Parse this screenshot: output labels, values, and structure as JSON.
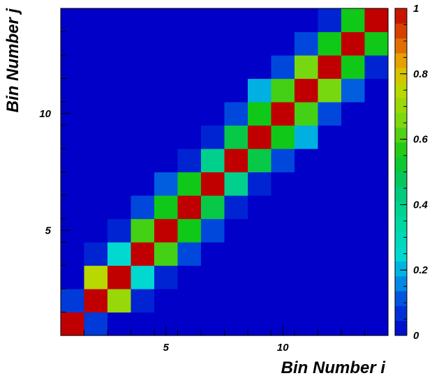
{
  "chart_data": {
    "type": "heatmap",
    "title": "",
    "xlabel": "Bin Number i",
    "ylabel": "Bin Number j",
    "x_bins": 14,
    "y_bins": 14,
    "x_major_ticks": [
      5,
      10
    ],
    "y_major_ticks": [
      5,
      10
    ],
    "color_scale": {
      "min": 0,
      "max": 1,
      "ticks": [
        0,
        0.2,
        0.4,
        0.6,
        0.8,
        1
      ],
      "tick_labels": [
        "0",
        "0.2",
        "0.4",
        "0.6",
        "0.8",
        "1"
      ],
      "stops": [
        [
          0.0,
          "#0000c8"
        ],
        [
          0.1,
          "#0048dc"
        ],
        [
          0.18,
          "#00a0e8"
        ],
        [
          0.25,
          "#00d8d0"
        ],
        [
          0.35,
          "#00d8a0"
        ],
        [
          0.45,
          "#00c878"
        ],
        [
          0.55,
          "#10c818"
        ],
        [
          0.65,
          "#78d810"
        ],
        [
          0.75,
          "#b8d800"
        ],
        [
          0.82,
          "#e8b800"
        ],
        [
          0.9,
          "#e06000"
        ],
        [
          1.0,
          "#c00000"
        ]
      ]
    },
    "grid": false,
    "legend": "right colorbar",
    "z": [
      [
        1.0,
        0.08,
        0,
        0,
        0,
        0,
        0,
        0,
        0,
        0,
        0,
        0,
        0,
        0
      ],
      [
        0.08,
        1.0,
        0.75,
        0.05,
        0,
        0,
        0,
        0,
        0,
        0,
        0,
        0,
        0,
        0
      ],
      [
        0,
        0.7,
        1.0,
        0.25,
        0.05,
        0,
        0,
        0,
        0,
        0,
        0,
        0,
        0,
        0
      ],
      [
        0,
        0.05,
        0.25,
        1.0,
        0.6,
        0.1,
        0,
        0,
        0,
        0,
        0,
        0,
        0,
        0
      ],
      [
        0,
        0,
        0.05,
        0.6,
        1.0,
        0.55,
        0.12,
        0,
        0,
        0,
        0,
        0,
        0,
        0
      ],
      [
        0,
        0,
        0,
        0.1,
        0.55,
        1.0,
        0.55,
        0.05,
        0,
        0,
        0,
        0,
        0,
        0
      ],
      [
        0,
        0,
        0,
        0,
        0.1,
        0.5,
        1.0,
        0.4,
        0.05,
        0,
        0,
        0,
        0,
        0
      ],
      [
        0,
        0,
        0,
        0,
        0,
        0.05,
        0.4,
        1.0,
        0.5,
        0.1,
        0,
        0,
        0,
        0
      ],
      [
        0,
        0,
        0,
        0,
        0,
        0,
        0.05,
        0.5,
        1.0,
        0.55,
        0.2,
        0,
        0,
        0
      ],
      [
        0,
        0,
        0,
        0,
        0,
        0,
        0,
        0.1,
        0.55,
        1.0,
        0.6,
        0.1,
        0,
        0
      ],
      [
        0,
        0,
        0,
        0,
        0,
        0,
        0,
        0,
        0.2,
        0.6,
        1.0,
        0.65,
        0.1,
        0
      ],
      [
        0,
        0,
        0,
        0,
        0,
        0,
        0,
        0,
        0,
        0.1,
        0.65,
        1.0,
        0.55,
        0.05
      ],
      [
        0,
        0,
        0,
        0,
        0,
        0,
        0,
        0,
        0,
        0,
        0.12,
        0.55,
        1.0,
        0.55
      ],
      [
        0,
        0,
        0,
        0,
        0,
        0,
        0,
        0,
        0,
        0,
        0,
        0.05,
        0.55,
        1.0
      ]
    ]
  }
}
